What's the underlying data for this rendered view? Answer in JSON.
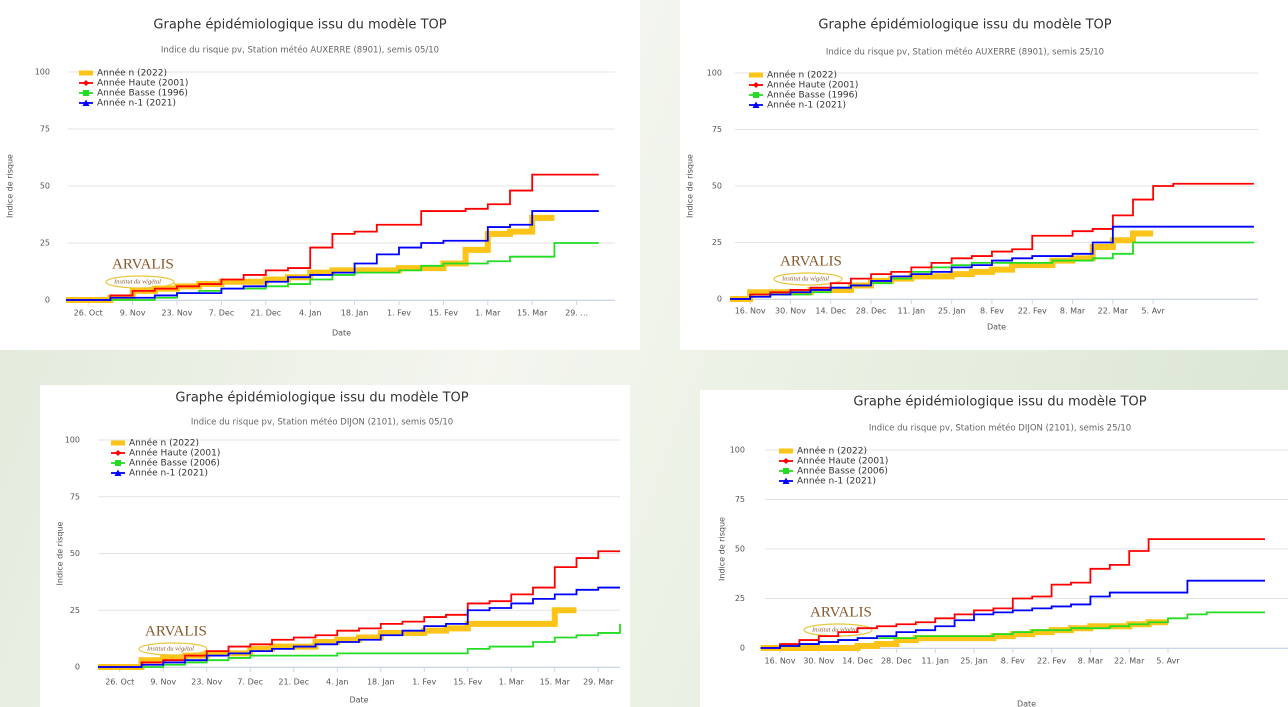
{
  "logo": {
    "name": "ARVALIS",
    "tagline": "Institut du végétal"
  },
  "chart_data": [
    {
      "type": "line",
      "step": true,
      "title": "Graphe épidémiologique issu du modèle TOP",
      "subtitle": "Indice du risque pv, Station météo AUXERRE (8901), semis 05/10",
      "ylabel": "Indice de risque",
      "xlabel": "Date",
      "grid": true,
      "ylim": [
        0,
        100
      ],
      "yticks": [
        0,
        25,
        50,
        75,
        100
      ],
      "categories": [
        null,
        "26. Oct",
        null,
        "9. Nov",
        null,
        "23. Nov",
        null,
        "7. Dec",
        null,
        "21. Dec",
        null,
        "4. Jan",
        null,
        "18. Jan",
        null,
        "1. Fev",
        null,
        "15. Fev",
        null,
        "1. Mar",
        null,
        "15. Mar",
        null,
        "29. ...",
        null
      ],
      "series": [
        {
          "name": "Année n (2022)",
          "color": "#fcc418",
          "values": [
            0,
            0,
            1,
            4,
            5,
            6,
            7,
            8,
            8,
            9,
            10,
            12,
            13,
            13,
            13,
            14,
            14,
            16,
            22,
            29,
            30,
            36,
            36,
            null,
            null
          ]
        },
        {
          "name": "Année Haute (2001)",
          "color": "#ff0000",
          "values": [
            0,
            0,
            2,
            4,
            5,
            6,
            7,
            9,
            11,
            13,
            14,
            23,
            29,
            30,
            33,
            33,
            39,
            39,
            40,
            42,
            48,
            55,
            55,
            55,
            55
          ]
        },
        {
          "name": "Année Basse (1996)",
          "color": "#22dd22",
          "values": [
            0,
            0,
            0,
            0,
            1,
            3,
            4,
            5,
            5,
            6,
            7,
            9,
            11,
            12,
            12,
            13,
            15,
            16,
            16,
            17,
            19,
            19,
            25,
            25,
            25
          ]
        },
        {
          "name": "Année n-1 (2021)",
          "color": "#0000ff",
          "values": [
            0,
            0,
            1,
            1,
            2,
            3,
            3,
            5,
            6,
            8,
            10,
            11,
            12,
            16,
            20,
            23,
            25,
            26,
            26,
            32,
            33,
            39,
            39,
            39,
            39
          ]
        }
      ]
    },
    {
      "type": "line",
      "step": true,
      "title": "Graphe épidémiologique issu du modèle TOP",
      "subtitle": "Indice du risque pv, Station météo AUXERRE (8901), semis 25/10",
      "ylabel": "Indice de risque",
      "xlabel": "Date",
      "grid": true,
      "ylim": [
        0,
        100
      ],
      "yticks": [
        0,
        25,
        50,
        75,
        100
      ],
      "categories": [
        null,
        "16. Nov",
        null,
        "30. Nov",
        null,
        "14. Dec",
        null,
        "28. Dec",
        null,
        "11. Jan",
        null,
        "25. Jan",
        null,
        "8. Fev",
        null,
        "22. Fev",
        null,
        "8. Mar",
        null,
        "22. Mar",
        null,
        "5. Avr",
        null,
        null,
        null,
        null,
        null
      ],
      "series": [
        {
          "name": "Année n (2022)",
          "color": "#fcc418",
          "values": [
            0,
            3,
            3,
            3,
            4,
            4,
            6,
            8,
            9,
            10,
            10,
            11,
            12,
            13,
            15,
            15,
            17,
            18,
            23,
            26,
            29,
            29,
            null,
            null,
            null,
            null,
            null
          ]
        },
        {
          "name": "Année Haute (2001)",
          "color": "#ff0000",
          "values": [
            0,
            2,
            3,
            4,
            5,
            7,
            9,
            11,
            12,
            14,
            16,
            18,
            19,
            21,
            22,
            28,
            28,
            30,
            31,
            37,
            44,
            50,
            51,
            51,
            51,
            51,
            51
          ]
        },
        {
          "name": "Année Basse (1996)",
          "color": "#22dd22",
          "values": [
            0,
            1,
            2,
            2,
            3,
            5,
            6,
            7,
            9,
            12,
            14,
            15,
            16,
            16,
            16,
            16,
            17,
            17,
            18,
            20,
            25,
            25,
            25,
            25,
            25,
            25,
            25
          ]
        },
        {
          "name": "Année n-1 (2021)",
          "color": "#0000ff",
          "values": [
            0,
            1,
            2,
            3,
            4,
            5,
            6,
            8,
            10,
            11,
            12,
            14,
            15,
            17,
            18,
            19,
            19,
            20,
            25,
            32,
            32,
            32,
            32,
            32,
            32,
            32,
            32
          ]
        }
      ]
    },
    {
      "type": "line",
      "step": true,
      "title": "Graphe épidémiologique issu du modèle TOP",
      "subtitle": "Indice du risque pv, Station météo DIJON (2101), semis 05/10",
      "ylabel": "Indice de risque",
      "xlabel": "Date",
      "grid": true,
      "ylim": [
        0,
        100
      ],
      "yticks": [
        0,
        25,
        50,
        75,
        100
      ],
      "categories": [
        null,
        "26. Oct",
        null,
        "9. Nov",
        null,
        "23. Nov",
        null,
        "7. Dec",
        null,
        "21. Dec",
        null,
        "4. Jan",
        null,
        "18. Jan",
        null,
        "1. Fev",
        null,
        "15. Fev",
        null,
        "1. Mar",
        null,
        "15. Mar",
        null,
        "29. Mar",
        null
      ],
      "series": [
        {
          "name": "Année n (2022)",
          "color": "#fcc418",
          "values": [
            0,
            0,
            3,
            4,
            5,
            6,
            6,
            8,
            9,
            9,
            11,
            12,
            13,
            15,
            15,
            16,
            17,
            19,
            19,
            19,
            19,
            25,
            25,
            null,
            null
          ]
        },
        {
          "name": "Année Haute (2001)",
          "color": "#ff0000",
          "values": [
            0,
            0,
            2,
            3,
            5,
            7,
            9,
            10,
            12,
            13,
            14,
            16,
            17,
            19,
            20,
            22,
            23,
            28,
            29,
            32,
            35,
            44,
            48,
            51,
            51
          ]
        },
        {
          "name": "Année Basse (2006)",
          "color": "#22dd22",
          "values": [
            0,
            0,
            0,
            1,
            2,
            3,
            4,
            5,
            5,
            5,
            5,
            6,
            6,
            6,
            6,
            6,
            6,
            8,
            9,
            9,
            11,
            13,
            14,
            15,
            19
          ]
        },
        {
          "name": "Année n-1 (2021)",
          "color": "#0000ff",
          "values": [
            0,
            0,
            1,
            2,
            3,
            5,
            6,
            7,
            8,
            9,
            10,
            11,
            12,
            14,
            16,
            18,
            19,
            25,
            26,
            28,
            30,
            32,
            34,
            35,
            35
          ]
        }
      ]
    },
    {
      "type": "line",
      "step": true,
      "title": "Graphe épidémiologique issu du modèle TOP",
      "subtitle": "Indice du risque pv, Station météo DIJON (2101), semis 25/10",
      "ylabel": "Indice de risque",
      "xlabel": "Date",
      "grid": true,
      "ylim": [
        0,
        100
      ],
      "yticks": [
        0,
        25,
        50,
        75,
        100
      ],
      "categories": [
        null,
        "16. Nov",
        null,
        "30. Nov",
        null,
        "14. Dec",
        null,
        "28. Dec",
        null,
        "11. Jan",
        null,
        "25. Jan",
        null,
        "8. Fev",
        null,
        "22. Fev",
        null,
        "8. Mar",
        null,
        "22. Mar",
        null,
        "5. Avr",
        null,
        null,
        null,
        null,
        null
      ],
      "series": [
        {
          "name": "Année n (2022)",
          "color": "#fcc418",
          "values": [
            0,
            0,
            0,
            0,
            0,
            1,
            2,
            4,
            5,
            5,
            5,
            5,
            6,
            7,
            8,
            9,
            10,
            11,
            11,
            12,
            13,
            13,
            null,
            null,
            null,
            null,
            null
          ]
        },
        {
          "name": "Année Haute (2001)",
          "color": "#ff0000",
          "values": [
            0,
            2,
            4,
            6,
            8,
            10,
            11,
            12,
            13,
            15,
            17,
            19,
            20,
            25,
            26,
            32,
            33,
            40,
            42,
            49,
            55,
            55,
            55,
            55,
            55,
            55,
            55
          ]
        },
        {
          "name": "Année Basse (2006)",
          "color": "#22dd22",
          "values": [
            0,
            1,
            2,
            3,
            4,
            5,
            5,
            5,
            6,
            6,
            6,
            6,
            7,
            8,
            9,
            9,
            10,
            10,
            11,
            12,
            13,
            15,
            17,
            18,
            18,
            18,
            18
          ]
        },
        {
          "name": "Année n-1 (2021)",
          "color": "#0000ff",
          "values": [
            0,
            1,
            2,
            3,
            4,
            5,
            6,
            8,
            9,
            11,
            14,
            17,
            18,
            19,
            20,
            21,
            22,
            26,
            28,
            28,
            28,
            28,
            34,
            34,
            34,
            34,
            34
          ]
        }
      ]
    }
  ]
}
